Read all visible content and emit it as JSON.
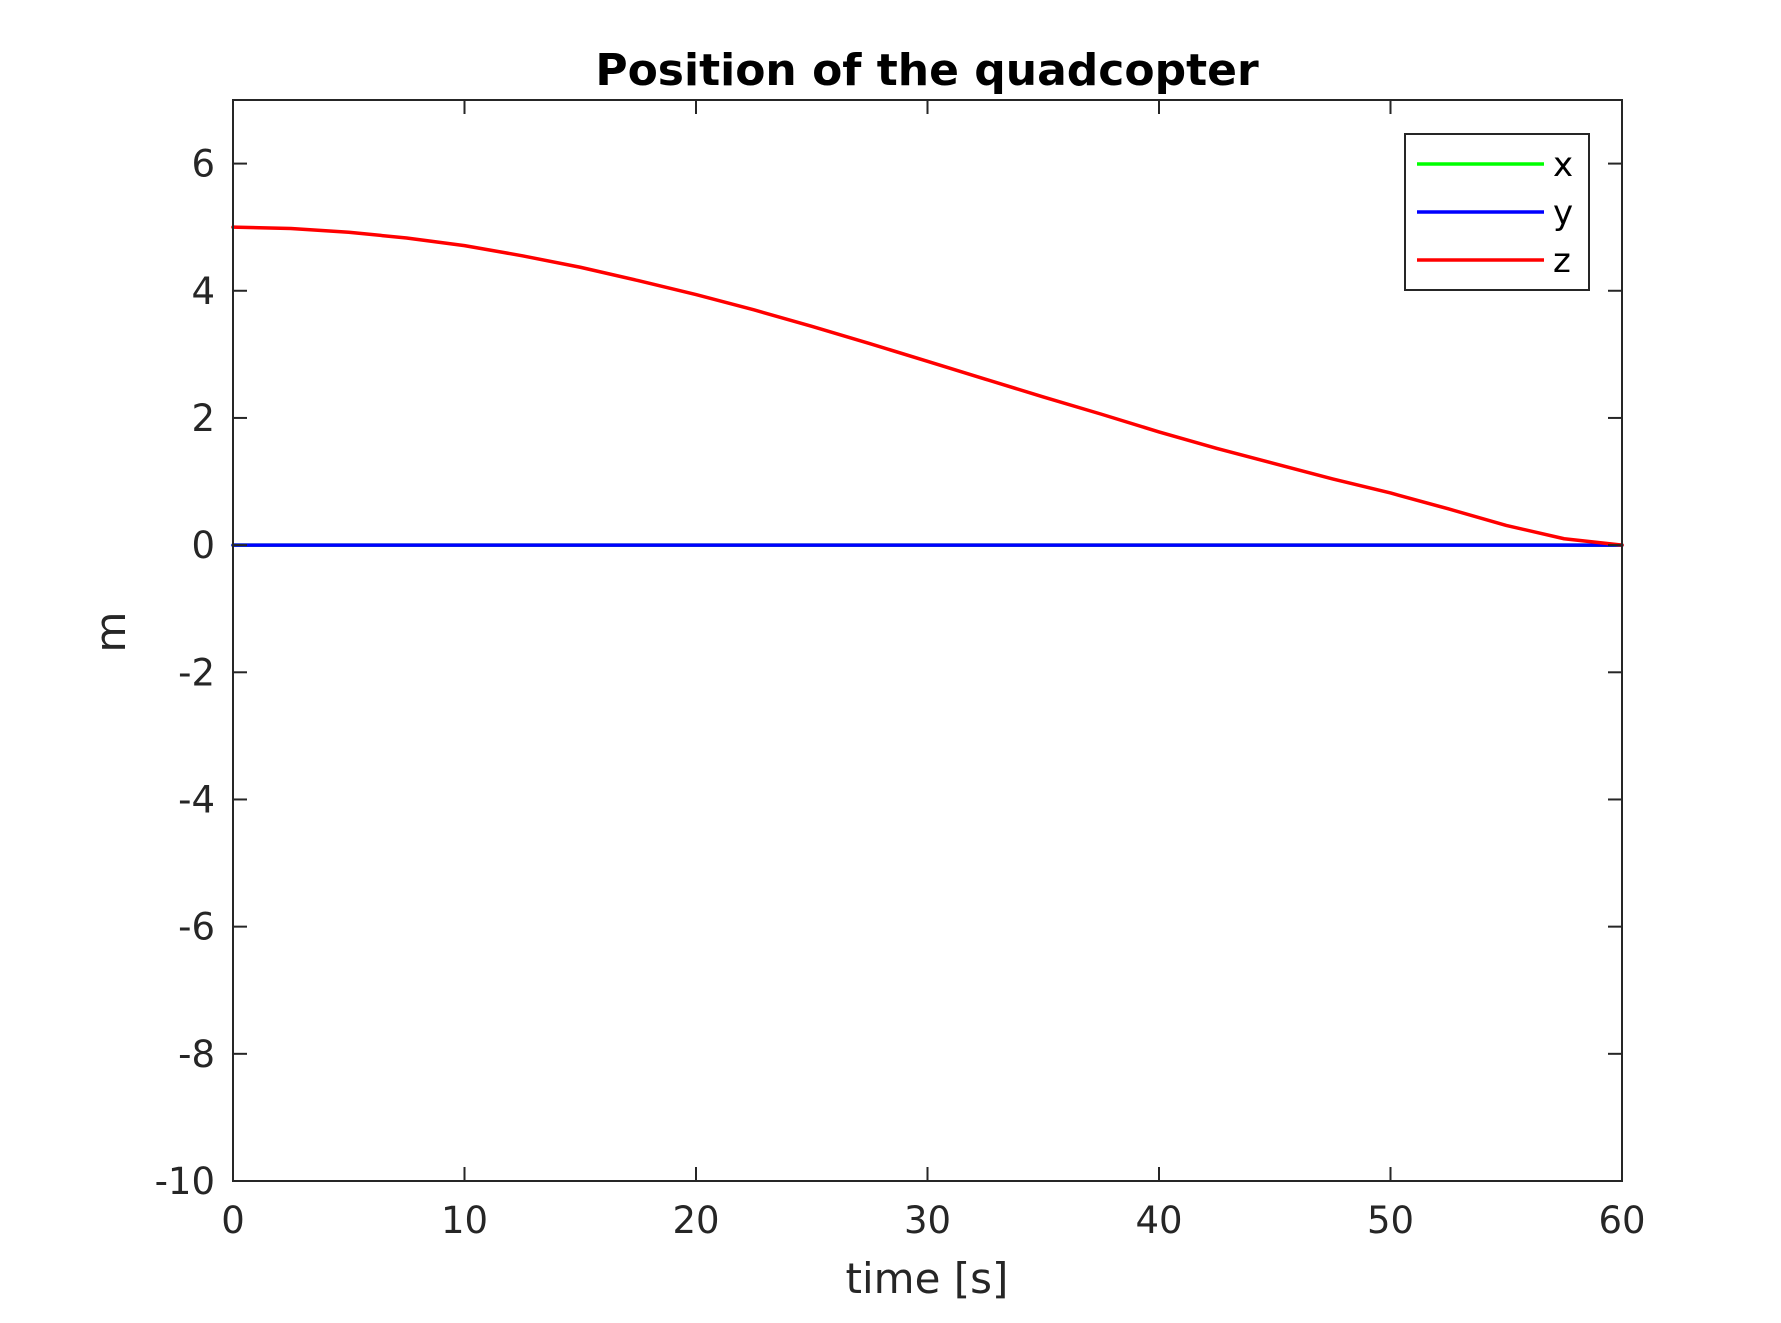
{
  "chart_data": {
    "type": "line",
    "title": "Position of the quadcopter",
    "xlabel": "time [s]",
    "ylabel": "m",
    "xlim": [
      0,
      60
    ],
    "ylim": [
      -10,
      7
    ],
    "xticks": [
      0,
      10,
      20,
      30,
      40,
      50,
      60
    ],
    "yticks": [
      -10,
      -8,
      -6,
      -4,
      -2,
      0,
      2,
      4,
      6
    ],
    "xtick_labels": [
      "0",
      "10",
      "20",
      "30",
      "40",
      "50",
      "60"
    ],
    "ytick_labels": [
      "-10",
      "-8",
      "-6",
      "-4",
      "-2",
      "0",
      "2",
      "4",
      "6"
    ],
    "grid": false,
    "legend_position": "top-right",
    "series": [
      {
        "name": "x",
        "color": "#00ff00",
        "x": [
          0,
          5,
          10,
          15,
          20,
          25,
          30,
          35,
          40,
          45,
          50,
          55,
          60
        ],
        "y": [
          0,
          0,
          0,
          0,
          0,
          0,
          0,
          0,
          0,
          0,
          0,
          0,
          0
        ]
      },
      {
        "name": "y",
        "color": "#0000ff",
        "x": [
          0,
          5,
          10,
          15,
          20,
          25,
          30,
          35,
          40,
          45,
          50,
          55,
          60
        ],
        "y": [
          0,
          0,
          0,
          0,
          0,
          0,
          0,
          0,
          0,
          0,
          0,
          0,
          0
        ]
      },
      {
        "name": "z",
        "color": "#ff0000",
        "x": [
          0,
          2.5,
          5,
          7.5,
          10,
          12.5,
          15,
          17.5,
          20,
          22.5,
          25,
          27.5,
          30,
          32.5,
          35,
          37.5,
          40,
          42.5,
          45,
          47.5,
          50,
          52.5,
          55,
          57.5,
          60
        ],
        "y": [
          5.0,
          4.98,
          4.92,
          4.83,
          4.71,
          4.55,
          4.37,
          4.16,
          3.94,
          3.7,
          3.44,
          3.17,
          2.89,
          2.61,
          2.33,
          2.06,
          1.78,
          1.52,
          1.28,
          1.04,
          0.82,
          0.57,
          0.31,
          0.1,
          0.0
        ]
      }
    ]
  }
}
